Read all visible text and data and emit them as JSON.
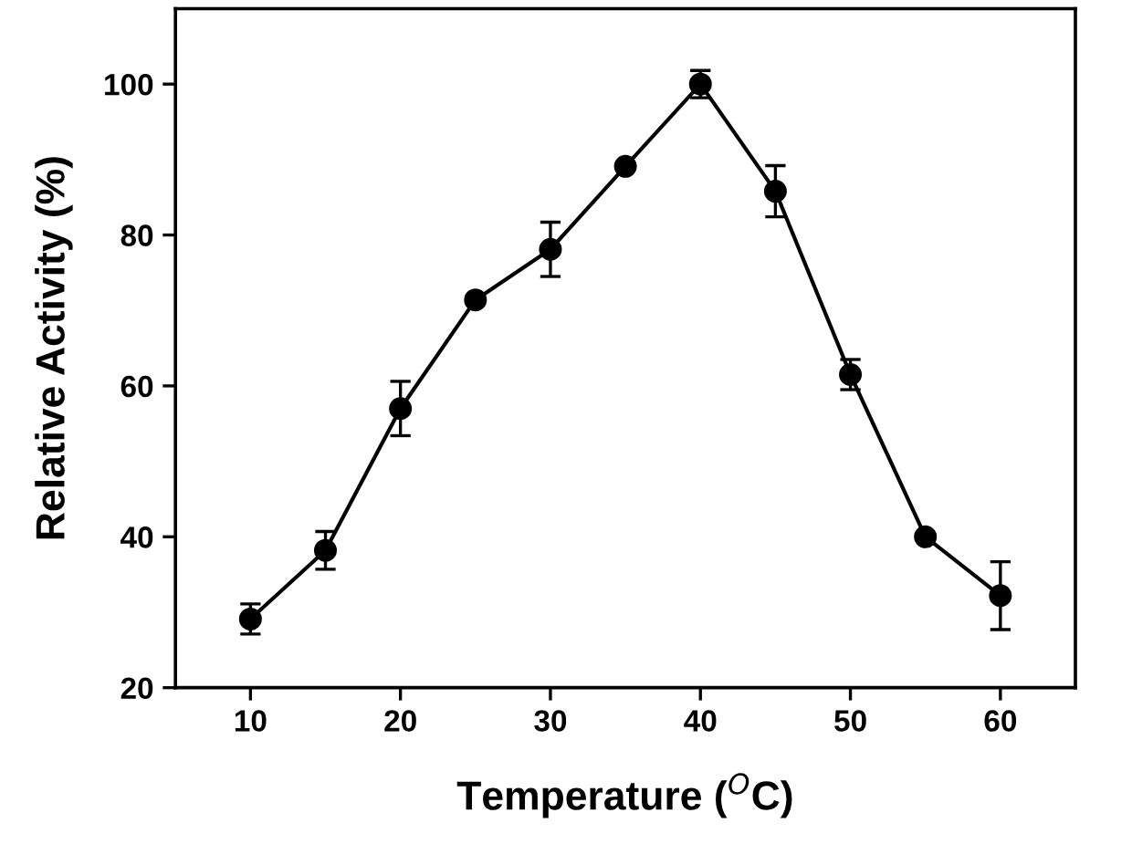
{
  "chart_data": {
    "type": "line",
    "xlabel": "Temperature ($^{O}$C)",
    "ylabel": "Relative Activity (%)",
    "x": [
      10,
      15,
      20,
      25,
      30,
      35,
      40,
      45,
      50,
      55,
      60
    ],
    "series": [
      {
        "color": "#000000",
        "values": [
          29.1,
          38.2,
          57.0,
          71.4,
          78.1,
          89.1,
          100,
          85.8,
          61.5,
          40.0,
          32.2
        ],
        "errors": [
          2,
          2.5,
          3.6,
          null,
          3.6,
          null,
          1.8,
          3.4,
          2,
          null,
          4.5
        ]
      }
    ],
    "xlim": [
      5,
      65
    ],
    "ylim": [
      20,
      110
    ],
    "xticks": [
      10,
      20,
      30,
      40,
      50,
      60
    ],
    "yticks": [
      20,
      40,
      60,
      80,
      100
    ],
    "marker": "circle",
    "line_style": "solid",
    "grid": false,
    "legend": false
  }
}
